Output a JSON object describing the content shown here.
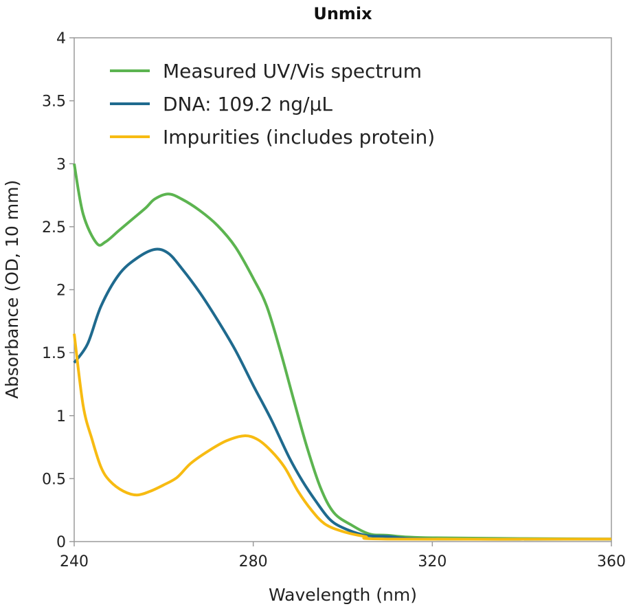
{
  "chart_data": {
    "type": "line",
    "title": "Unmix",
    "xlabel": "Wavelength (nm)",
    "ylabel": "Absorbance (OD, 10 mm)",
    "xlim": [
      240,
      360
    ],
    "ylim": [
      0,
      4
    ],
    "xticks": [
      "240",
      "280",
      "320",
      "360"
    ],
    "xtick_values": [
      240,
      280,
      320,
      360
    ],
    "yticks": [
      "0",
      "0.5",
      "1",
      "1.5",
      "2",
      "2.5",
      "3",
      "3.5",
      "4"
    ],
    "ytick_values": [
      0,
      0.5,
      1,
      1.5,
      2,
      2.5,
      3,
      3.5,
      4
    ],
    "grid": false,
    "legend_position": "top-left",
    "series": [
      {
        "name": "Measured UV/Vis spectrum",
        "color": "#5cb450",
        "x": [
          240,
          242,
          245,
          247,
          250,
          253,
          256,
          258,
          261,
          264,
          268,
          272,
          276,
          280,
          283,
          286,
          289,
          292,
          295,
          298,
          302,
          306,
          310,
          320,
          360
        ],
        "y": [
          3.0,
          2.6,
          2.37,
          2.38,
          2.47,
          2.56,
          2.65,
          2.72,
          2.76,
          2.72,
          2.63,
          2.51,
          2.34,
          2.09,
          1.87,
          1.52,
          1.13,
          0.75,
          0.43,
          0.23,
          0.13,
          0.06,
          0.05,
          0.03,
          0.02
        ]
      },
      {
        "name": "DNA: 109.2 ng/µL",
        "color": "#1f6a8e",
        "x": [
          240,
          243,
          246,
          250,
          254,
          258,
          261,
          264,
          268,
          272,
          276,
          280,
          284,
          288,
          291,
          294,
          297,
          300,
          305,
          310,
          320,
          360
        ],
        "y": [
          1.42,
          1.57,
          1.87,
          2.12,
          2.25,
          2.32,
          2.29,
          2.17,
          1.98,
          1.76,
          1.52,
          1.24,
          0.97,
          0.67,
          0.48,
          0.32,
          0.18,
          0.11,
          0.05,
          0.04,
          0.02,
          0.02
        ]
      },
      {
        "name": "Impurities (includes protein)",
        "color": "#f7bb12",
        "x": [
          240,
          242,
          244,
          246,
          248,
          251,
          254,
          257,
          260,
          263,
          266,
          270,
          274,
          278,
          281,
          284,
          287,
          290,
          293,
          296,
          300,
          305,
          310,
          360
        ],
        "y": [
          1.65,
          1.08,
          0.81,
          0.59,
          0.48,
          0.4,
          0.37,
          0.4,
          0.45,
          0.51,
          0.62,
          0.72,
          0.8,
          0.84,
          0.81,
          0.72,
          0.59,
          0.4,
          0.25,
          0.14,
          0.08,
          0.04,
          0.02,
          0.02
        ]
      }
    ]
  }
}
